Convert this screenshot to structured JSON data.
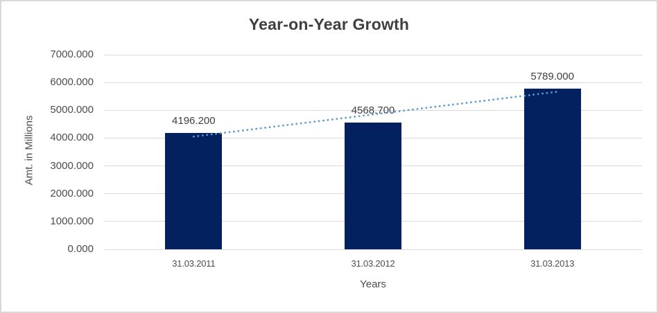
{
  "chart_data": {
    "type": "bar",
    "title": "Year-on-Year Growth",
    "categories": [
      "31.03.2011",
      "31.03.2012",
      "31.03.2013"
    ],
    "values": [
      4196.2,
      4568.7,
      5789.0
    ],
    "data_labels": [
      "4196.200",
      "4568.700",
      "5789.000"
    ],
    "xlabel": "Years",
    "ylabel": "Amt. in Millions",
    "ylim": [
      0,
      7000
    ],
    "ytick_step": 1000,
    "ytick_labels": [
      "0.000",
      "1000.000",
      "2000.000",
      "3000.000",
      "4000.000",
      "5000.000",
      "6000.000",
      "7000.000"
    ],
    "grid": true,
    "legend": "none",
    "trendline": {
      "type": "linear",
      "style": "dotted",
      "color": "#5B9BD5"
    },
    "colors": {
      "bar": "#02215E",
      "gridline": "#D9D9D9",
      "border": "#D9D9D9",
      "title_text": "#3F3F3F",
      "axis_text": "#4D4D4D",
      "label_text": "#404040"
    }
  }
}
